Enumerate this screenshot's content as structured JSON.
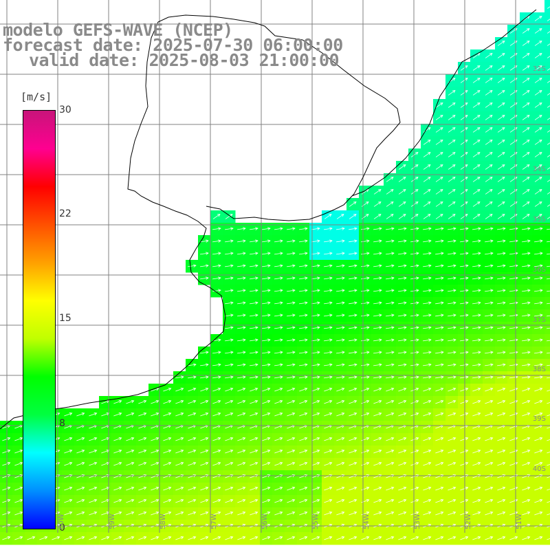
{
  "title": {
    "line1": "modelo GEFS-WAVE (NCEP)",
    "line2": "forecast date: 2025-07-30 06:00:00",
    "line3": "valid date: 2025-08-03 21:00:00"
  },
  "colorbar": {
    "unit_label": "[m/s]",
    "ticks": [
      "30",
      "22",
      "15",
      "8",
      "0"
    ],
    "value_range": [
      0,
      30
    ],
    "stops": [
      "#0000ff",
      "#0090ff",
      "#00ffff",
      "#00ff40",
      "#00ff00",
      "#c0ff00",
      "#ffff00",
      "#ffa000",
      "#ff5000",
      "#ff0000",
      "#ff0090",
      "#c8147a"
    ]
  },
  "lat_labels": [
    "32S",
    "34S",
    "35S",
    "36S",
    "37S",
    "38S",
    "39S",
    "40S"
  ],
  "lon_labels": [
    "60W",
    "59W",
    "58W",
    "57W",
    "56W",
    "55W",
    "54W",
    "53W",
    "52W",
    "51W"
  ],
  "colors": {
    "land": "#ffffff",
    "grid": "#808080",
    "coast": "#000000",
    "arrows": "#ffffff",
    "title": "#8a8a8a"
  }
}
